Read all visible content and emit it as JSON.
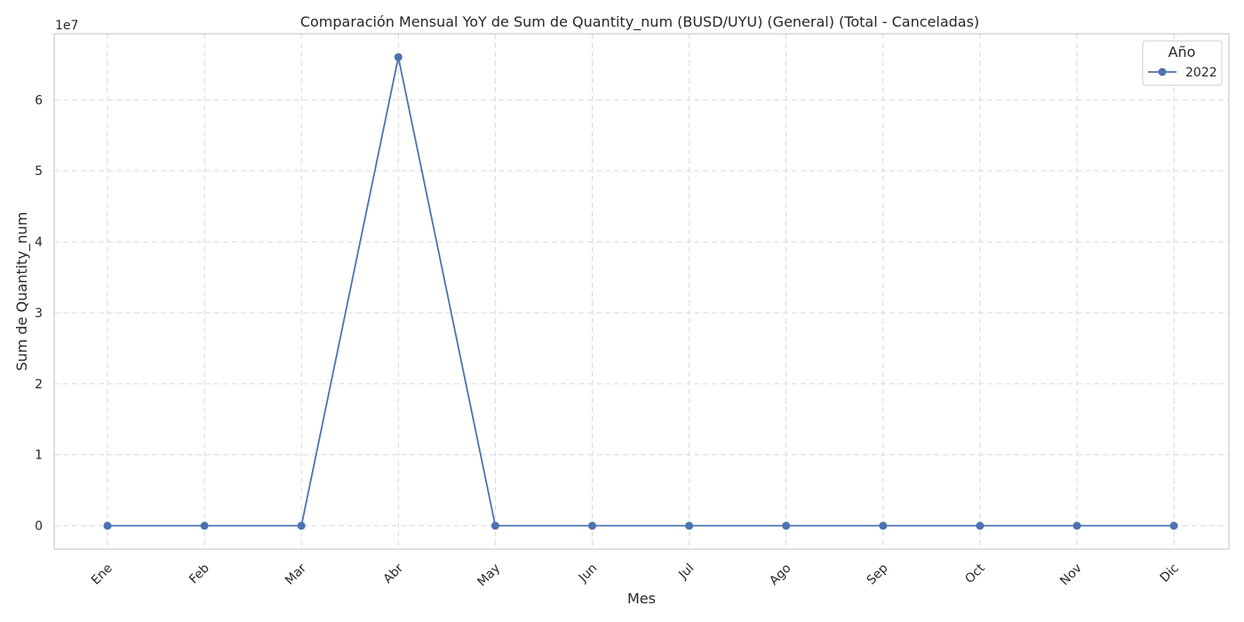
{
  "chart_data": {
    "type": "line",
    "title": "Comparación Mensual YoY de Sum de Quantity_num (BUSD/UYU) (General) (Total - Canceladas)",
    "xlabel": "Mes",
    "ylabel": "Sum de Quantity_num",
    "y_offset_label": "1e7",
    "categories": [
      "Ene",
      "Feb",
      "Mar",
      "Abr",
      "May",
      "Jun",
      "Jul",
      "Ago",
      "Sep",
      "Oct",
      "Nov",
      "Dic"
    ],
    "yticks": [
      0,
      1,
      2,
      3,
      4,
      5,
      6
    ],
    "yticks_scale": 10000000,
    "ylim": [
      -3300000,
      69300000
    ],
    "grid": true,
    "legend": {
      "title": "Año",
      "placement": "top-right"
    },
    "series": [
      {
        "name": "2022",
        "color": "#4c72b0",
        "values": [
          0,
          0,
          0,
          66000000,
          0,
          0,
          0,
          0,
          0,
          0,
          0,
          0
        ]
      }
    ]
  }
}
